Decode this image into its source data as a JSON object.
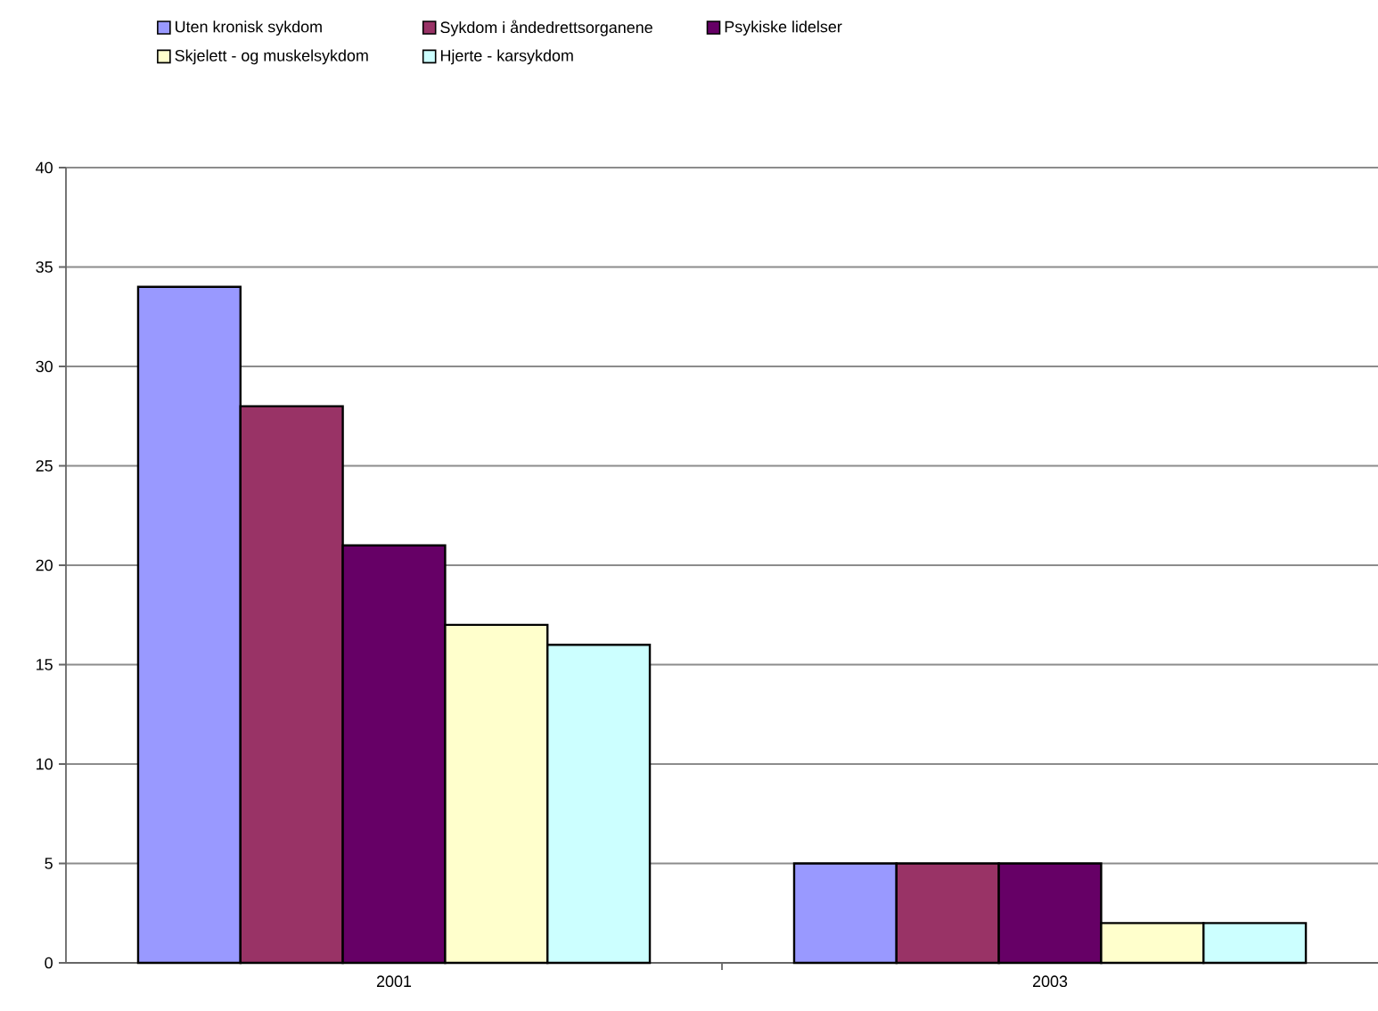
{
  "chart_data": {
    "type": "bar",
    "categories": [
      "2001",
      "2003"
    ],
    "series": [
      {
        "name": "Uten kronisk sykdom",
        "color": "#9999ff",
        "values": [
          34,
          5
        ]
      },
      {
        "name": "Sykdom i åndedrettsorganene",
        "color": "#993366",
        "values": [
          28,
          5
        ]
      },
      {
        "name": "Psykiske lidelser",
        "color": "#660066",
        "values": [
          21,
          5
        ]
      },
      {
        "name": "Skjelett - og muskelsykdom",
        "color": "#ffffcc",
        "values": [
          17,
          2
        ]
      },
      {
        "name": "Hjerte - karsykdom",
        "color": "#ccffff",
        "values": [
          16,
          2
        ]
      }
    ],
    "ylim": [
      0,
      40
    ],
    "yticks": [
      0,
      5,
      10,
      15,
      20,
      25,
      30,
      35,
      40
    ],
    "grid": "y",
    "legend": "top"
  }
}
